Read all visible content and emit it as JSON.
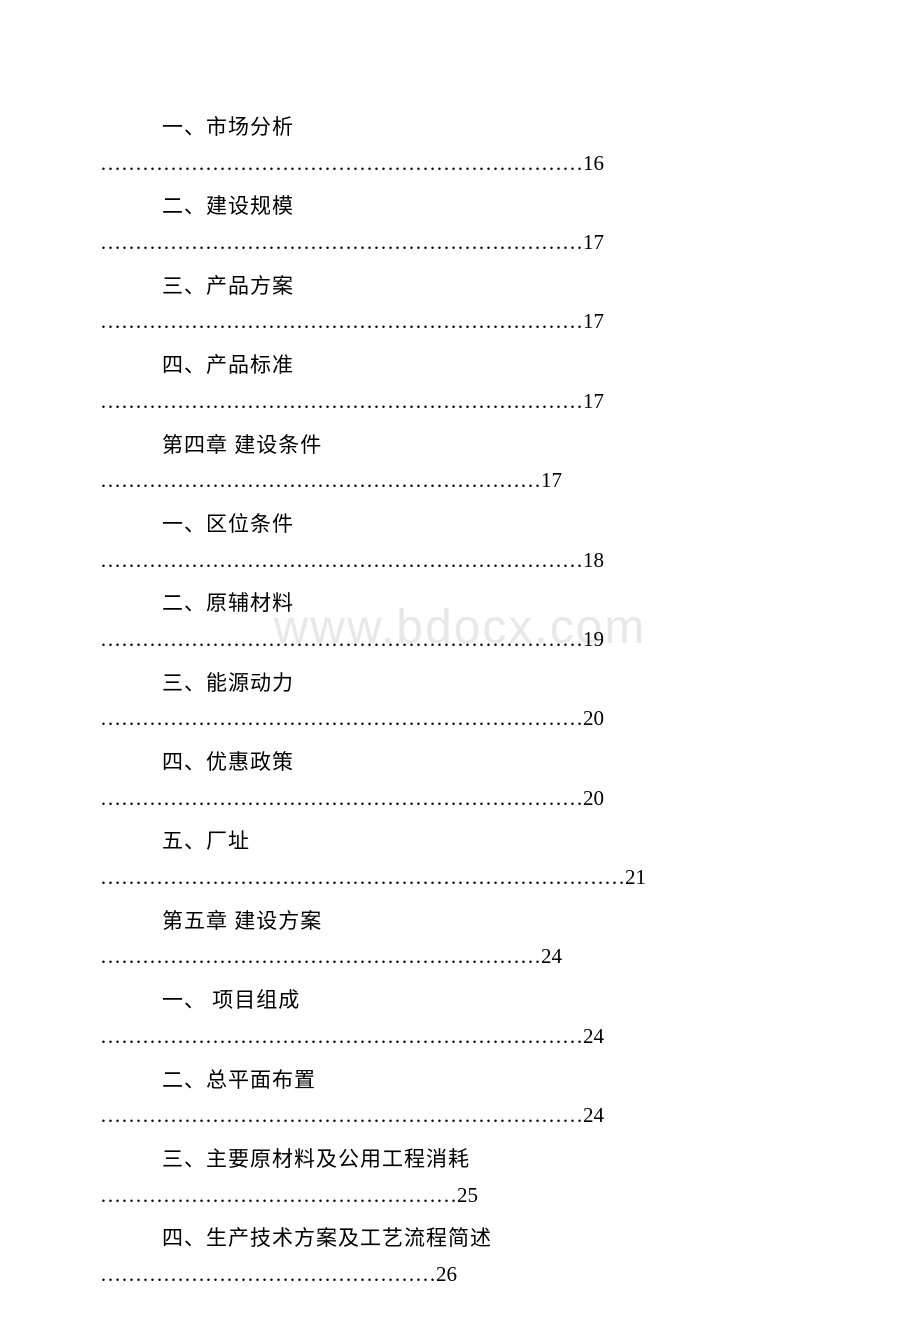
{
  "document": {
    "type": "table-of-contents",
    "watermark_text": "www.bdocx.com",
    "background_color": "#ffffff",
    "text_color": "#000000",
    "watermark_color": "#e8e8e8",
    "font_size": 21,
    "entries": [
      {
        "title": "一、市场分析",
        "page": "16",
        "dots": "……………………………………………………………"
      },
      {
        "title": "二、建设规模",
        "page": "17",
        "dots": "……………………………………………………………"
      },
      {
        "title": "三、产品方案",
        "page": "17",
        "dots": "……………………………………………………………"
      },
      {
        "title": "四、产品标准",
        "page": "17",
        "dots": "……………………………………………………………"
      },
      {
        "title": "第四章 建设条件",
        "page": "17",
        "dots": "………………………………………………………"
      },
      {
        "title": "一、区位条件",
        "page": "18",
        "dots": "……………………………………………………………"
      },
      {
        "title": "二、原辅材料",
        "page": "19",
        "dots": "……………………………………………………………"
      },
      {
        "title": "三、能源动力",
        "page": "20",
        "dots": "……………………………………………………………"
      },
      {
        "title": "四、优惠政策",
        "page": "20",
        "dots": "……………………………………………………………"
      },
      {
        "title": "五、厂址",
        "page": "21",
        "dots": "…………………………………………………………………"
      },
      {
        "title": "第五章 建设方案",
        "page": "24",
        "dots": "………………………………………………………"
      },
      {
        "title": "一、 项目组成",
        "page": "24",
        "dots": "……………………………………………………………"
      },
      {
        "title": "二、总平面布置",
        "page": "24",
        "dots": "……………………………………………………………"
      },
      {
        "title": "三、主要原材料及公用工程消耗",
        "page": "25",
        "dots": "……………………………………………"
      },
      {
        "title": "四、生产技术方案及工艺流程简述",
        "page": "26",
        "dots": "…………………………………………"
      }
    ]
  }
}
